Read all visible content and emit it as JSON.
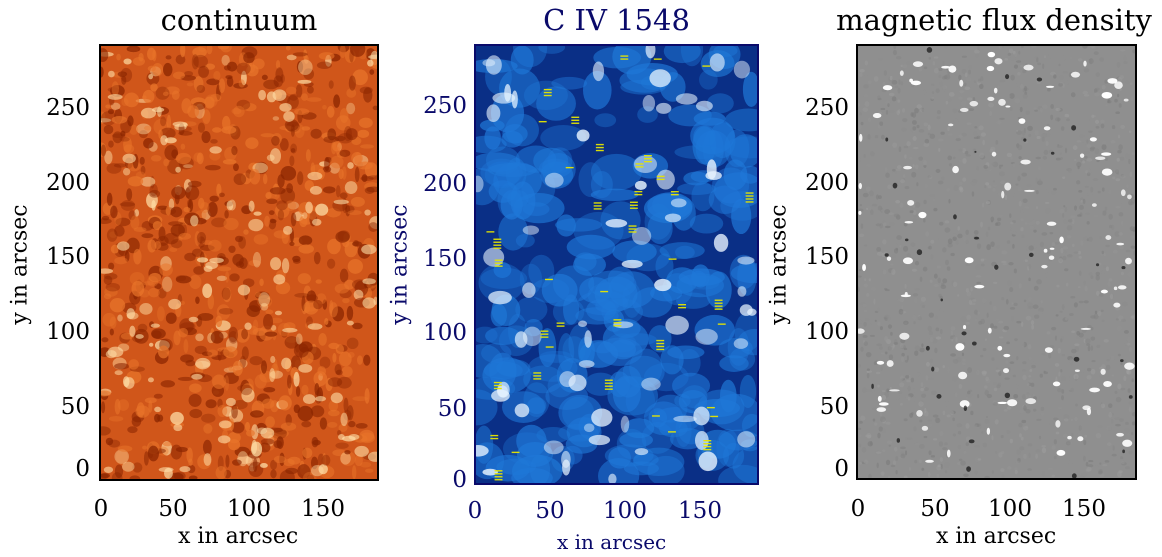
{
  "panels": [
    {
      "title": "continuum",
      "xlabel": "x in arcsec",
      "ylabel": "y in arcsec",
      "xticks": [
        "0",
        "50",
        "100",
        "150"
      ],
      "yticks": [
        "0",
        "50",
        "100",
        "150",
        "200",
        "250"
      ],
      "label_color": "#000000",
      "colormap": "red-temperature",
      "colors": {
        "dark": "#8a2500",
        "mid": "#d0561a",
        "bright": "#ffe0a8"
      }
    },
    {
      "title": "C IV 1548",
      "xlabel": "x in arcsec",
      "ylabel": "y in arcsec",
      "xticks": [
        "0",
        "50",
        "100",
        "150"
      ],
      "yticks": [
        "0",
        "50",
        "100",
        "150",
        "200",
        "250"
      ],
      "label_color": "#0a0a6a",
      "colormap": "blue",
      "colors": {
        "dark": "#0a2f86",
        "mid": "#1f78d8",
        "bright": "#e8f4ff",
        "marker": "#e6e600"
      }
    },
    {
      "title": "magnetic flux density",
      "xlabel": "x in arcsec",
      "ylabel": "y in arcsec",
      "xticks": [
        "0",
        "50",
        "100",
        "150"
      ],
      "yticks": [
        "0",
        "50",
        "100",
        "150",
        "200",
        "250"
      ],
      "label_color": "#000000",
      "colormap": "gray",
      "colors": {
        "background": "#8f8f8f",
        "positive": "#ffffff",
        "negative": "#111111"
      }
    }
  ],
  "axes": {
    "xlim": [
      0,
      186
    ],
    "ylim": [
      0,
      290
    ]
  }
}
